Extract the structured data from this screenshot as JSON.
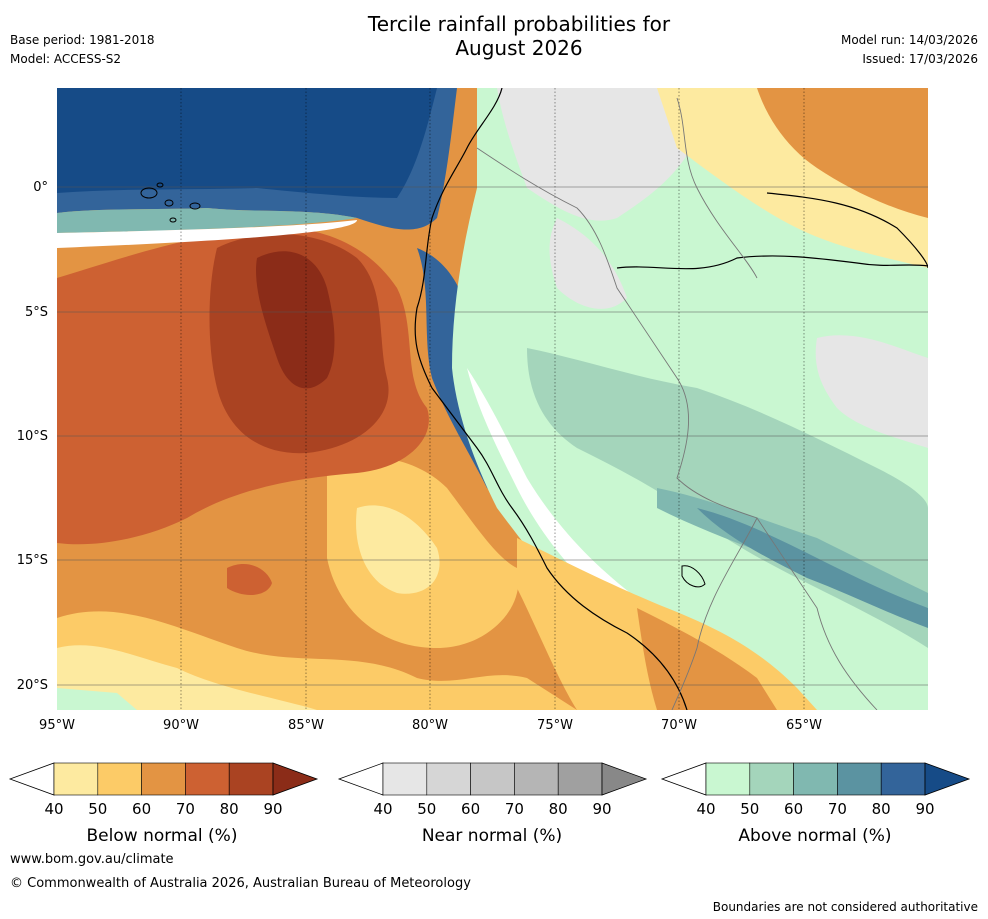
{
  "header": {
    "title_line1": "Tercile rainfall probabilities for",
    "title_line2": "August 2026",
    "base_period": "Base period: 1981-2018",
    "model": "Model: ACCESS-S2",
    "model_run": "Model run: 14/03/2026",
    "issued": "Issued: 17/03/2026"
  },
  "map": {
    "lat_labels": [
      "0°",
      "5°S",
      "10°S",
      "15°S",
      "20°S"
    ],
    "lon_labels": [
      "95°W",
      "90°W",
      "85°W",
      "80°W",
      "75°W",
      "70°W",
      "65°W"
    ]
  },
  "colorbars": [
    {
      "title": "Below normal (%)",
      "ticks": [
        "40",
        "50",
        "60",
        "70",
        "80",
        "90"
      ],
      "colors": [
        "#fdeaa0",
        "#fccb67",
        "#e39443",
        "#cd6132",
        "#aa4322",
        "#8b2c18"
      ]
    },
    {
      "title": "Near normal (%)",
      "ticks": [
        "40",
        "50",
        "60",
        "70",
        "80",
        "90"
      ],
      "colors": [
        "#e6e6e6",
        "#d6d6d6",
        "#c6c6c6",
        "#b5b5b5",
        "#a0a0a0",
        "#888888"
      ]
    },
    {
      "title": "Above normal (%)",
      "ticks": [
        "40",
        "50",
        "60",
        "70",
        "80",
        "90"
      ],
      "colors": [
        "#c9f7d1",
        "#a4d5bb",
        "#80b8b0",
        "#5b93a1",
        "#33649a",
        "#164b87"
      ]
    }
  ],
  "footer": {
    "website": "www.bom.gov.au/climate",
    "copyright": "© Commonwealth of Australia 2026, Australian Bureau of Meteorology",
    "disclaimer": "Boundaries are not considered authoritative"
  }
}
